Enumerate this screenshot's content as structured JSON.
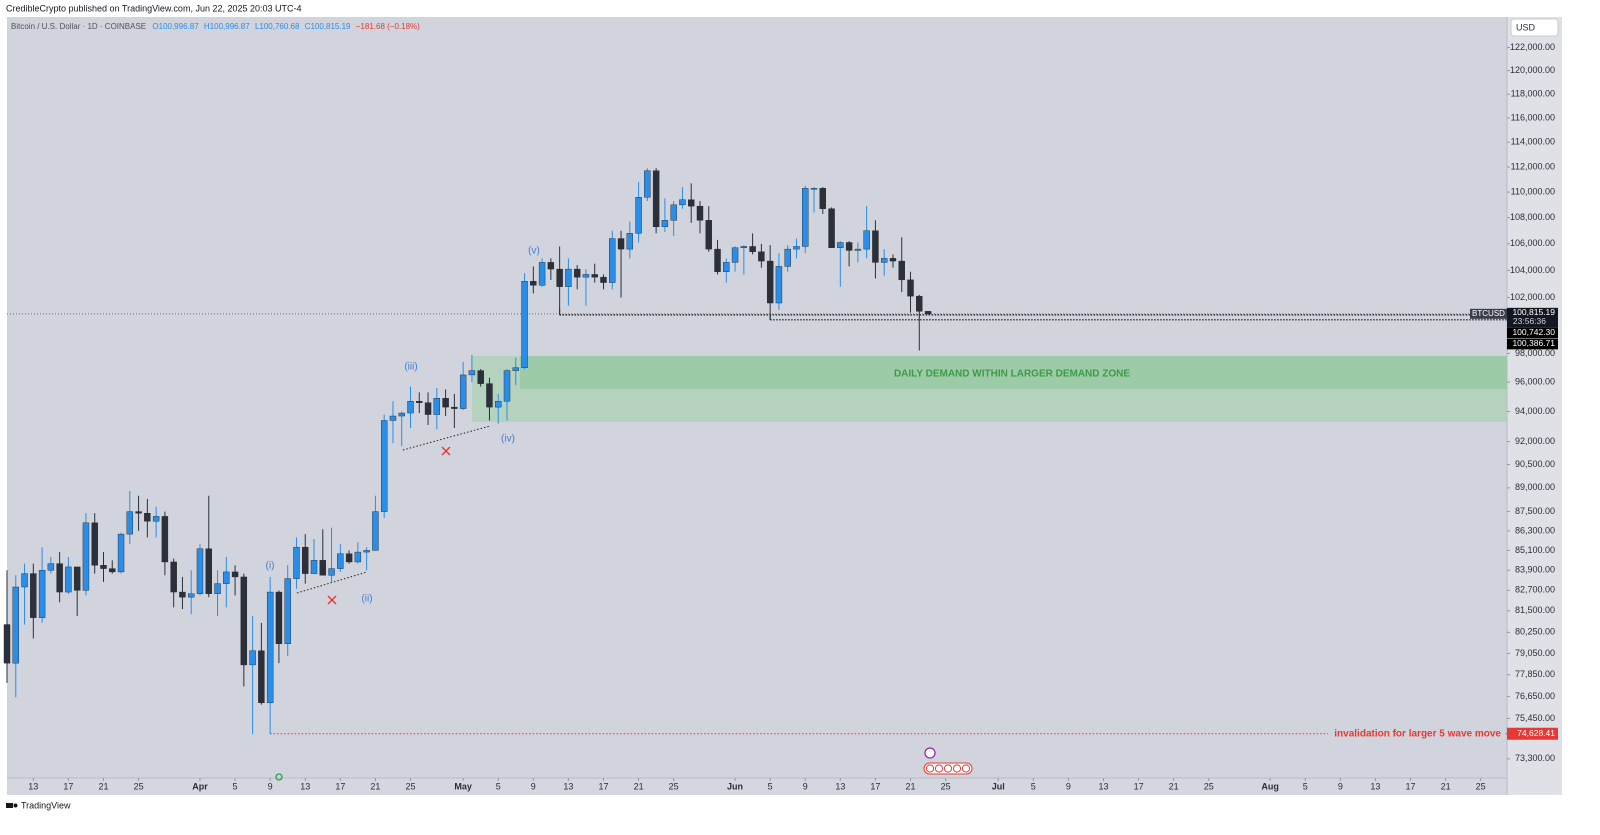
{
  "publisher": "CredibleCrypto published on TradingView.com, Jun 22, 2025 20:03 UTC-4",
  "footer": "TradingView",
  "chart_data": {
    "type": "candlestick",
    "symbol": "Bitcoin / U.S. Dollar · 1D · COINBASE",
    "quote": [
      "O100,996.87",
      "H100,996.87",
      "L100,760.68",
      "C100,815.19",
      "−181.68 (−0.18%)"
    ],
    "currency": "USD",
    "up_color": "#2a8ee8",
    "down_color": "#2c3039",
    "log_scale": true,
    "grid": false,
    "xlim": [
      "2025-03-10",
      "2025-08-28"
    ],
    "ylim": [
      72300,
      124700
    ],
    "x": [
      "2025-03-10",
      "2025-03-11",
      "2025-03-12",
      "2025-03-13",
      "2025-03-14",
      "2025-03-15",
      "2025-03-16",
      "2025-03-17",
      "2025-03-18",
      "2025-03-19",
      "2025-03-20",
      "2025-03-21",
      "2025-03-22",
      "2025-03-23",
      "2025-03-24",
      "2025-03-25",
      "2025-03-26",
      "2025-03-27",
      "2025-03-28",
      "2025-03-29",
      "2025-03-30",
      "2025-03-31",
      "2025-04-01",
      "2025-04-02",
      "2025-04-03",
      "2025-04-04",
      "2025-04-05",
      "2025-04-06",
      "2025-04-07",
      "2025-04-08",
      "2025-04-09",
      "2025-04-10",
      "2025-04-11",
      "2025-04-12",
      "2025-04-13",
      "2025-04-14",
      "2025-04-15",
      "2025-04-16",
      "2025-04-17",
      "2025-04-18",
      "2025-04-19",
      "2025-04-20",
      "2025-04-21",
      "2025-04-22",
      "2025-04-23",
      "2025-04-24",
      "2025-04-25",
      "2025-04-26",
      "2025-04-27",
      "2025-04-28",
      "2025-04-29",
      "2025-04-30",
      "2025-05-01",
      "2025-05-02",
      "2025-05-03",
      "2025-05-04",
      "2025-05-05",
      "2025-05-06",
      "2025-05-07",
      "2025-05-08",
      "2025-05-09",
      "2025-05-10",
      "2025-05-11",
      "2025-05-12",
      "2025-05-13",
      "2025-05-14",
      "2025-05-15",
      "2025-05-16",
      "2025-05-17",
      "2025-05-18",
      "2025-05-19",
      "2025-05-20",
      "2025-05-21",
      "2025-05-22",
      "2025-05-23",
      "2025-05-24",
      "2025-05-25",
      "2025-05-26",
      "2025-05-27",
      "2025-05-28",
      "2025-05-29",
      "2025-05-30",
      "2025-05-31",
      "2025-06-01",
      "2025-06-02",
      "2025-06-03",
      "2025-06-04",
      "2025-06-05",
      "2025-06-06",
      "2025-06-07",
      "2025-06-08",
      "2025-06-09",
      "2025-06-10",
      "2025-06-11",
      "2025-06-12",
      "2025-06-13",
      "2025-06-14",
      "2025-06-15",
      "2025-06-16",
      "2025-06-17",
      "2025-06-18",
      "2025-06-19",
      "2025-06-20",
      "2025-06-21",
      "2025-06-22",
      "2025-06-23"
    ],
    "open": [
      80700,
      78500,
      82900,
      83700,
      81100,
      83900,
      84300,
      82600,
      84100,
      82700,
      86800,
      84200,
      84000,
      83800,
      86100,
      87500,
      87400,
      86900,
      87200,
      84400,
      82600,
      82300,
      82500,
      85200,
      82500,
      83100,
      83800,
      83500,
      78400,
      79200,
      76300,
      82600,
      79600,
      83400,
      85300,
      83700,
      84500,
      83600,
      84000,
      84900,
      84400,
      85000,
      85100,
      87500,
      93400,
      93700,
      93900,
      94700,
      94600,
      93800,
      94900,
      94300,
      94200,
      96500,
      96800,
      95900,
      94300,
      94700,
      96800,
      97000,
      103200,
      102900,
      104600,
      104100,
      102800,
      104100,
      103500,
      103700,
      103500,
      103100,
      106400,
      105600,
      106800,
      109600,
      111700,
      107300,
      107800,
      109000,
      109400,
      108900,
      107800,
      105600,
      103900,
      104600,
      105700,
      105800,
      105400,
      104700,
      101600,
      104300,
      105600,
      105800,
      110300,
      110300,
      108700,
      105700,
      106100,
      105500,
      105600,
      107000,
      104600,
      104900,
      104700,
      103300,
      102100,
      100996.87
    ],
    "high": [
      83900,
      83600,
      84300,
      84300,
      85300,
      84700,
      85000,
      84700,
      84100,
      87400,
      87400,
      85000,
      84500,
      86200,
      88800,
      88500,
      88300,
      87800,
      87500,
      84600,
      83500,
      83900,
      85500,
      88500,
      83900,
      84700,
      84200,
      83700,
      81200,
      80800,
      83500,
      82700,
      84200,
      85900,
      86100,
      85800,
      86400,
      86500,
      85500,
      85100,
      85600,
      85300,
      88500,
      93800,
      94700,
      94000,
      95700,
      95300,
      95300,
      95600,
      95500,
      95200,
      97400,
      97900,
      96900,
      96300,
      95200,
      96900,
      97700,
      103800,
      104300,
      104900,
      104900,
      105800,
      104900,
      104400,
      104100,
      104500,
      103700,
      107000,
      107000,
      107700,
      110800,
      111900,
      111900,
      109500,
      109300,
      110400,
      110700,
      109300,
      108900,
      106300,
      104900,
      105800,
      105900,
      106800,
      106000,
      105900,
      105300,
      105900,
      106400,
      110500,
      110400,
      110400,
      108800,
      106200,
      106200,
      106100,
      108900,
      107800,
      105600,
      105200,
      106500,
      103900,
      102200,
      100996.87
    ],
    "low": [
      77400,
      76600,
      80700,
      79900,
      80800,
      83700,
      82000,
      82500,
      81200,
      82400,
      83700,
      83200,
      83700,
      83700,
      85500,
      86300,
      85900,
      85900,
      83600,
      81700,
      81600,
      81300,
      82400,
      82300,
      81200,
      81700,
      82400,
      77200,
      74600,
      76200,
      74600,
      78500,
      78900,
      82800,
      83100,
      83700,
      83600,
      83200,
      83800,
      84300,
      84300,
      83900,
      85100,
      87100,
      91900,
      91700,
      92900,
      93900,
      93100,
      92800,
      93700,
      92900,
      94100,
      96000,
      95700,
      93400,
      93200,
      93400,
      95800,
      96900,
      102300,
      102800,
      103300,
      100800,
      101400,
      102600,
      101400,
      103100,
      102600,
      102600,
      102000,
      104900,
      106100,
      109300,
      106800,
      106900,
      106600,
      108700,
      107600,
      106800,
      105400,
      103700,
      103100,
      103900,
      103700,
      105200,
      104200,
      100400,
      101100,
      103900,
      104900,
      105300,
      108400,
      108300,
      105700,
      102800,
      104300,
      104600,
      104900,
      103400,
      103600,
      104200,
      102400,
      100900,
      98200,
      100760.68
    ],
    "close": [
      78500,
      82900,
      83700,
      81100,
      83900,
      84300,
      82600,
      84100,
      82700,
      86800,
      84200,
      84000,
      83800,
      86100,
      87500,
      87400,
      86900,
      87200,
      84400,
      82600,
      82300,
      82500,
      85200,
      82500,
      83100,
      83800,
      83500,
      78400,
      79200,
      76300,
      82600,
      79600,
      83400,
      85300,
      83700,
      84500,
      83600,
      84000,
      84900,
      84400,
      85000,
      85100,
      87500,
      93400,
      93700,
      93900,
      94700,
      94600,
      93800,
      94900,
      94300,
      94200,
      96500,
      96800,
      95900,
      94300,
      94700,
      96800,
      97000,
      103200,
      102900,
      104600,
      104100,
      102800,
      104100,
      103500,
      103700,
      103500,
      103100,
      106400,
      105600,
      106800,
      109600,
      111700,
      107300,
      107800,
      109000,
      109400,
      108900,
      107800,
      105600,
      103900,
      104600,
      105700,
      105800,
      105400,
      104700,
      101600,
      104300,
      105600,
      105800,
      110300,
      110300,
      108700,
      105700,
      106100,
      105500,
      105600,
      107000,
      104600,
      104900,
      104700,
      103300,
      102100,
      100996.87,
      100815.19
    ],
    "yticks": [
      {
        "value": 122000,
        "label": "122,000.00"
      },
      {
        "value": 120000,
        "label": "120,000.00"
      },
      {
        "value": 118000,
        "label": "118,000.00"
      },
      {
        "value": 116000,
        "label": "116,000.00"
      },
      {
        "value": 114000,
        "label": "114,000.00"
      },
      {
        "value": 112000,
        "label": "112,000.00"
      },
      {
        "value": 110000,
        "label": "110,000.00"
      },
      {
        "value": 108000,
        "label": "108,000.00"
      },
      {
        "value": 106000,
        "label": "106,000.00"
      },
      {
        "value": 104000,
        "label": "104,000.00"
      },
      {
        "value": 102000,
        "label": "102,000.00"
      },
      {
        "value": 98000,
        "label": "98,000.00"
      },
      {
        "value": 96000,
        "label": "96,000.00"
      },
      {
        "value": 94000,
        "label": "94,000.00"
      },
      {
        "value": 92000,
        "label": "92,000.00"
      },
      {
        "value": 90500,
        "label": "90,500.00"
      },
      {
        "value": 89000,
        "label": "89,000.00"
      },
      {
        "value": 87500,
        "label": "87,500.00"
      },
      {
        "value": 86300,
        "label": "86,300.00"
      },
      {
        "value": 85100,
        "label": "85,100.00"
      },
      {
        "value": 83900,
        "label": "83,900.00"
      },
      {
        "value": 82700,
        "label": "82,700.00"
      },
      {
        "value": 81500,
        "label": "81,500.00"
      },
      {
        "value": 80250,
        "label": "80,250.00"
      },
      {
        "value": 79050,
        "label": "79,050.00"
      },
      {
        "value": 77850,
        "label": "77,850.00"
      },
      {
        "value": 76650,
        "label": "76,650.00"
      },
      {
        "value": 75450,
        "label": "75,450.00"
      },
      {
        "value": 73300,
        "label": "73,300.00"
      }
    ],
    "xticks": [
      {
        "value": "2025-03-13",
        "label": "13"
      },
      {
        "value": "2025-03-17",
        "label": "17"
      },
      {
        "value": "2025-03-21",
        "label": "21"
      },
      {
        "value": "2025-03-25",
        "label": "25"
      },
      {
        "value": "2025-04-01",
        "label": "Apr"
      },
      {
        "value": "2025-04-05",
        "label": "5"
      },
      {
        "value": "2025-04-09",
        "label": "9"
      },
      {
        "value": "2025-04-13",
        "label": "13"
      },
      {
        "value": "2025-04-17",
        "label": "17"
      },
      {
        "value": "2025-04-21",
        "label": "21"
      },
      {
        "value": "2025-04-25",
        "label": "25"
      },
      {
        "value": "2025-05-01",
        "label": "May"
      },
      {
        "value": "2025-05-05",
        "label": "5"
      },
      {
        "value": "2025-05-09",
        "label": "9"
      },
      {
        "value": "2025-05-13",
        "label": "13"
      },
      {
        "value": "2025-05-17",
        "label": "17"
      },
      {
        "value": "2025-05-21",
        "label": "21"
      },
      {
        "value": "2025-05-25",
        "label": "25"
      },
      {
        "value": "2025-06-01",
        "label": "Jun"
      },
      {
        "value": "2025-06-05",
        "label": "5"
      },
      {
        "value": "2025-06-09",
        "label": "9"
      },
      {
        "value": "2025-06-13",
        "label": "13"
      },
      {
        "value": "2025-06-17",
        "label": "17"
      },
      {
        "value": "2025-06-21",
        "label": "21"
      },
      {
        "value": "2025-06-25",
        "label": "25"
      },
      {
        "value": "2025-07-01",
        "label": "Jul"
      },
      {
        "value": "2025-07-05",
        "label": "5"
      },
      {
        "value": "2025-07-09",
        "label": "9"
      },
      {
        "value": "2025-07-13",
        "label": "13"
      },
      {
        "value": "2025-07-17",
        "label": "17"
      },
      {
        "value": "2025-07-21",
        "label": "21"
      },
      {
        "value": "2025-07-25",
        "label": "25"
      },
      {
        "value": "2025-08-01",
        "label": "Aug"
      },
      {
        "value": "2025-08-05",
        "label": "5"
      },
      {
        "value": "2025-08-09",
        "label": "9"
      },
      {
        "value": "2025-08-13",
        "label": "13"
      },
      {
        "value": "2025-08-17",
        "label": "17"
      },
      {
        "value": "2025-08-21",
        "label": "21"
      },
      {
        "value": "2025-08-25",
        "label": "25"
      }
    ],
    "price_line": {
      "name": "BTCUSD",
      "value": 100815.19,
      "label": "100,815.19",
      "countdown": "23:56:36"
    },
    "levels": [
      {
        "from": "2025-05-12",
        "value": 100742.3,
        "label": "100,742.30"
      },
      {
        "from": "2025-06-05",
        "value": 100386.71,
        "label": "100,386.71"
      }
    ],
    "invalidation": {
      "from": "2025-04-09",
      "value": 74628.41,
      "label": "74,628.41",
      "text": "invalidation for larger 5 wave move"
    },
    "zone_text": "DAILY DEMAND WITHIN LARGER DEMAND ZONE",
    "wave_labels": [
      "(i)",
      "(ii)",
      "(iii)",
      "(iv)",
      "(v)"
    ]
  }
}
